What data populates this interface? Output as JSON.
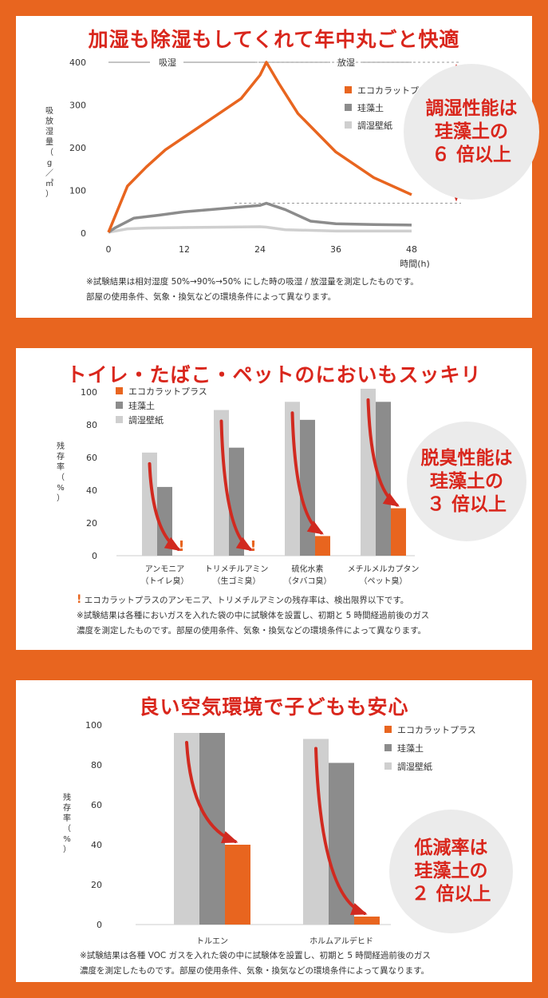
{
  "colors": {
    "background": "#e8651f",
    "accent_red": "#d9261c",
    "eco": "#e8651f",
    "diatomite": "#8c8c8c",
    "paper": "#cfcfcf"
  },
  "panels": [
    {
      "title": "加湿も除湿もしてくれて年中丸ごと快適",
      "callout_lines": [
        "調湿性能は",
        "珪藻土の",
        "６ 倍以上"
      ],
      "notes": [
        "※試験結果は相対湿度 50%→90%→50% にした時の吸湿 / 放湿量を測定したものです。",
        "部屋の使用条件、気象・換気などの環境条件によって異なります。"
      ]
    },
    {
      "title": "トイレ・たばこ・ペットのにおいもスッキリ",
      "callout_lines": [
        "脱臭性能は",
        "珪藻土の",
        "３ 倍以上"
      ],
      "notes": [
        "エコカラットプラスのアンモニア、トリメチルアミンの残存率は、検出限界以下です。",
        "※試験結果は各種においガスを入れた袋の中に試験体を設置し、初期と 5 時間経過前後のガス",
        "濃度を測定したものです。部屋の使用条件、気象・換気などの環境条件によって異なります。"
      ],
      "note_mark": "!"
    },
    {
      "title": "良い空気環境で子どもも安心",
      "callout_lines": [
        "低減率は",
        "珪藻土の",
        "２ 倍以上"
      ],
      "notes": [
        "※試験結果は各種 VOC ガスを入れた袋の中に試験体を設置し、初期と 5 時間経過前後のガス",
        "濃度を測定したものです。部屋の使用条件、気象・換気などの環境条件によって異なります。"
      ]
    }
  ],
  "chart_data": [
    {
      "type": "line",
      "ylabel": "吸放湿量（g／㎡）",
      "xlabel": "時間(h)",
      "x_ticks": [
        0,
        12,
        24,
        36,
        48
      ],
      "y_ticks": [
        0,
        100,
        200,
        300,
        400
      ],
      "xlim": [
        0,
        48
      ],
      "ylim": [
        0,
        400
      ],
      "phase_labels": [
        "吸湿",
        "放湿"
      ],
      "legend_position": "right",
      "series": [
        {
          "name": "エコカラットプラス",
          "color": "#e8651f",
          "x": [
            0,
            3,
            6,
            9,
            12,
            15,
            18,
            21,
            24,
            25,
            27,
            30,
            36,
            42,
            48
          ],
          "y": [
            2,
            110,
            155,
            195,
            225,
            255,
            285,
            315,
            370,
            400,
            350,
            280,
            190,
            130,
            90
          ]
        },
        {
          "name": "珪藻土",
          "color": "#8c8c8c",
          "x": [
            0,
            1,
            4,
            8,
            12,
            16,
            20,
            24,
            25,
            28,
            32,
            36,
            42,
            48
          ],
          "y": [
            2,
            12,
            35,
            42,
            50,
            55,
            60,
            65,
            70,
            55,
            28,
            22,
            20,
            19
          ]
        },
        {
          "name": "調湿壁紙",
          "color": "#cfcfcf",
          "x": [
            0,
            3,
            6,
            12,
            18,
            24,
            25,
            28,
            36,
            48
          ],
          "y": [
            2,
            10,
            12,
            13,
            14,
            15,
            14,
            8,
            5,
            5
          ]
        }
      ]
    },
    {
      "type": "bar",
      "ylabel": "残存率（%）",
      "y_ticks": [
        0,
        20,
        40,
        60,
        80,
        100
      ],
      "ylim": [
        0,
        100
      ],
      "legend_position": "top-left",
      "categories": [
        [
          "アンモニア",
          "（トイレ臭）"
        ],
        [
          "トリメチルアミン",
          "（生ゴミ臭）"
        ],
        [
          "硫化水素",
          "（タバコ臭）"
        ],
        [
          "メチルメルカプタン",
          "（ペット臭）"
        ]
      ],
      "below_detection": [
        true,
        true,
        false,
        false
      ],
      "series": [
        {
          "name": "エコカラットプラス",
          "color": "#e8651f",
          "values": [
            0,
            0,
            12,
            29
          ]
        },
        {
          "name": "珪藻土",
          "color": "#8c8c8c",
          "values": [
            42,
            66,
            83,
            94
          ]
        },
        {
          "name": "調湿壁紙",
          "color": "#cfcfcf",
          "values": [
            63,
            89,
            94,
            102
          ]
        }
      ]
    },
    {
      "type": "bar",
      "ylabel": "残存率（%）",
      "y_ticks": [
        0,
        20,
        40,
        60,
        80,
        100
      ],
      "ylim": [
        0,
        100
      ],
      "legend_position": "top-right",
      "categories": [
        [
          "トルエン"
        ],
        [
          "ホルムアルデヒド"
        ]
      ],
      "series": [
        {
          "name": "エコカラットプラス",
          "color": "#e8651f",
          "values": [
            40,
            4
          ]
        },
        {
          "name": "珪藻土",
          "color": "#8c8c8c",
          "values": [
            96,
            81
          ]
        },
        {
          "name": "調湿壁紙",
          "color": "#cfcfcf",
          "values": [
            96,
            93
          ]
        }
      ]
    }
  ]
}
